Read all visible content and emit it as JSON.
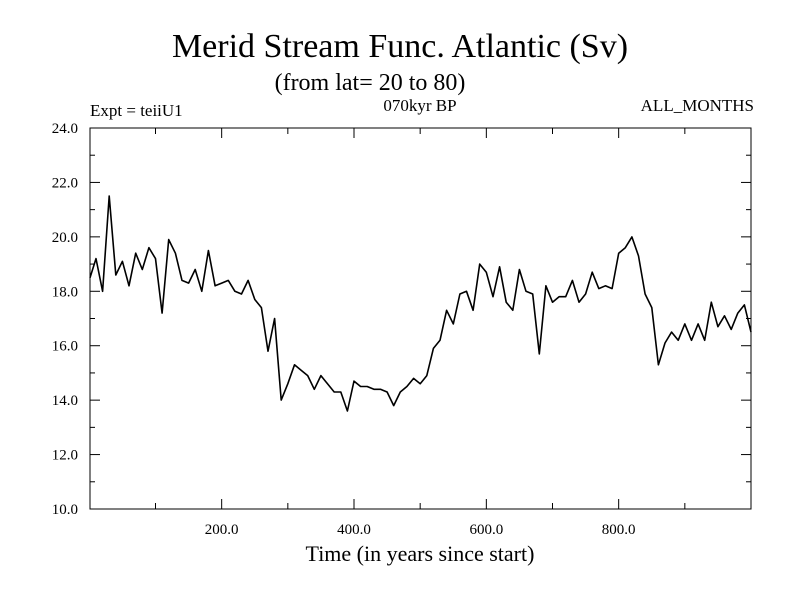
{
  "chart_data": {
    "type": "line",
    "title": "Merid Stream Func. Atlantic (Sv)",
    "subtitle": "(from lat= 20 to 80)",
    "annotations": {
      "left": "Expt = teiiU1",
      "center": "070kyr BP",
      "right": "ALL_MONTHS"
    },
    "xlabel": "Time (in years since start)",
    "ylabel": "",
    "xlim": [
      1,
      1000
    ],
    "ylim": [
      10,
      24
    ],
    "xticks": [
      200,
      400,
      600,
      800
    ],
    "xtick_labels": [
      "200.0",
      "400.0",
      "600.0",
      "800.0"
    ],
    "yticks": [
      10,
      12,
      14,
      16,
      18,
      20,
      22,
      24
    ],
    "ytick_labels": [
      "10.0",
      "12.0",
      "14.0",
      "16.0",
      "18.0",
      "20.0",
      "22.0",
      "24.0"
    ],
    "grid": false,
    "series": [
      {
        "color": "#000000",
        "x": [
          1,
          10,
          20,
          30,
          40,
          50,
          60,
          70,
          80,
          90,
          100,
          110,
          120,
          130,
          140,
          150,
          160,
          170,
          180,
          190,
          200,
          210,
          220,
          230,
          240,
          250,
          260,
          270,
          280,
          290,
          300,
          310,
          320,
          330,
          340,
          350,
          360,
          370,
          380,
          390,
          400,
          410,
          420,
          430,
          440,
          450,
          460,
          470,
          480,
          490,
          500,
          510,
          520,
          530,
          540,
          550,
          560,
          570,
          580,
          590,
          600,
          610,
          620,
          630,
          640,
          650,
          660,
          670,
          680,
          690,
          700,
          710,
          720,
          730,
          740,
          750,
          760,
          770,
          780,
          790,
          800,
          810,
          820,
          830,
          840,
          850,
          860,
          870,
          880,
          890,
          900,
          910,
          920,
          930,
          940,
          950,
          960,
          970,
          980,
          990,
          1000
        ],
        "y": [
          18.5,
          19.2,
          18.0,
          21.5,
          18.6,
          19.1,
          18.2,
          19.4,
          18.8,
          19.6,
          19.2,
          17.2,
          19.9,
          19.4,
          18.4,
          18.3,
          18.8,
          18.0,
          19.5,
          18.2,
          18.3,
          18.4,
          18.0,
          17.9,
          18.4,
          17.7,
          17.4,
          15.8,
          17.0,
          14.0,
          14.6,
          15.3,
          15.1,
          14.9,
          14.4,
          14.9,
          14.6,
          14.3,
          14.3,
          13.6,
          14.7,
          14.5,
          14.5,
          14.4,
          14.4,
          14.3,
          13.8,
          14.3,
          14.5,
          14.8,
          14.6,
          14.9,
          15.9,
          16.2,
          17.3,
          16.8,
          17.9,
          18.0,
          17.3,
          19.0,
          18.7,
          17.8,
          18.9,
          17.6,
          17.3,
          18.8,
          18.0,
          17.9,
          15.7,
          18.2,
          17.6,
          17.8,
          17.8,
          18.4,
          17.6,
          17.9,
          18.7,
          18.1,
          18.2,
          18.1,
          19.4,
          19.6,
          20.0,
          19.3,
          17.9,
          17.4,
          15.3,
          16.1,
          16.5,
          16.2,
          16.8,
          16.2,
          16.8,
          16.2,
          17.6,
          16.7,
          17.1,
          16.6,
          17.2,
          17.5,
          16.5
        ]
      }
    ]
  }
}
